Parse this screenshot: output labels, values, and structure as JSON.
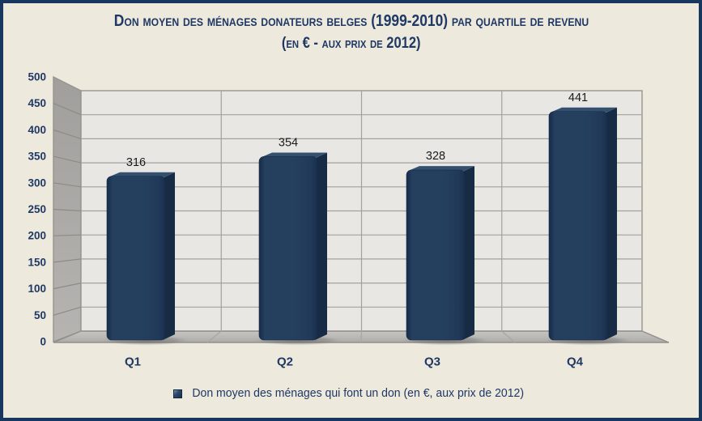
{
  "window": {
    "background": "#EDE9DC",
    "border_color": "#17375E"
  },
  "title": {
    "line1": "Don moyen des ménages donateurs belges (1999-2010) par quartile de revenu",
    "line2": "(en € - aux prix de 2012)",
    "color": "#1F3864"
  },
  "legend": {
    "marker_icon": "bar-series-cube-icon",
    "marker_color": "#1C3A5E",
    "label": "Don moyen des ménages qui font un don (en €, aux prix de 2012)"
  },
  "chart_data": {
    "type": "bar",
    "projection": "3d",
    "title": "Don moyen des ménages donateurs belges (1999-2010) par quartile de revenu (en € - aux prix de 2012)",
    "categories": [
      "Q1",
      "Q2",
      "Q3",
      "Q4"
    ],
    "values": [
      316,
      354,
      328,
      441
    ],
    "series": [
      {
        "name": "Don moyen des ménages qui font un don (en €, aux prix de 2012)",
        "values": [
          316,
          354,
          328,
          441
        ]
      }
    ],
    "data_labels": [
      "316",
      "354",
      "328",
      "441"
    ],
    "xlabel": "",
    "ylabel": "",
    "ylim": [
      0,
      500
    ],
    "ytick_step": 50,
    "ytick_labels": [
      "0",
      "50",
      "100",
      "150",
      "200",
      "250",
      "300",
      "350",
      "400",
      "450",
      "500"
    ],
    "grid": true,
    "legend_position": "bottom",
    "colors": {
      "bar_face": "#25405F",
      "bar_side": "#172B44",
      "bar_top": "#33506F",
      "axis_text": "#1F3864",
      "data_label_text": "#1A1A1A",
      "back_wall": "#E9E7E4",
      "side_wall": "#A9A7A4",
      "floor": "#BDBCB9",
      "gridline": "#A3A19E"
    }
  }
}
